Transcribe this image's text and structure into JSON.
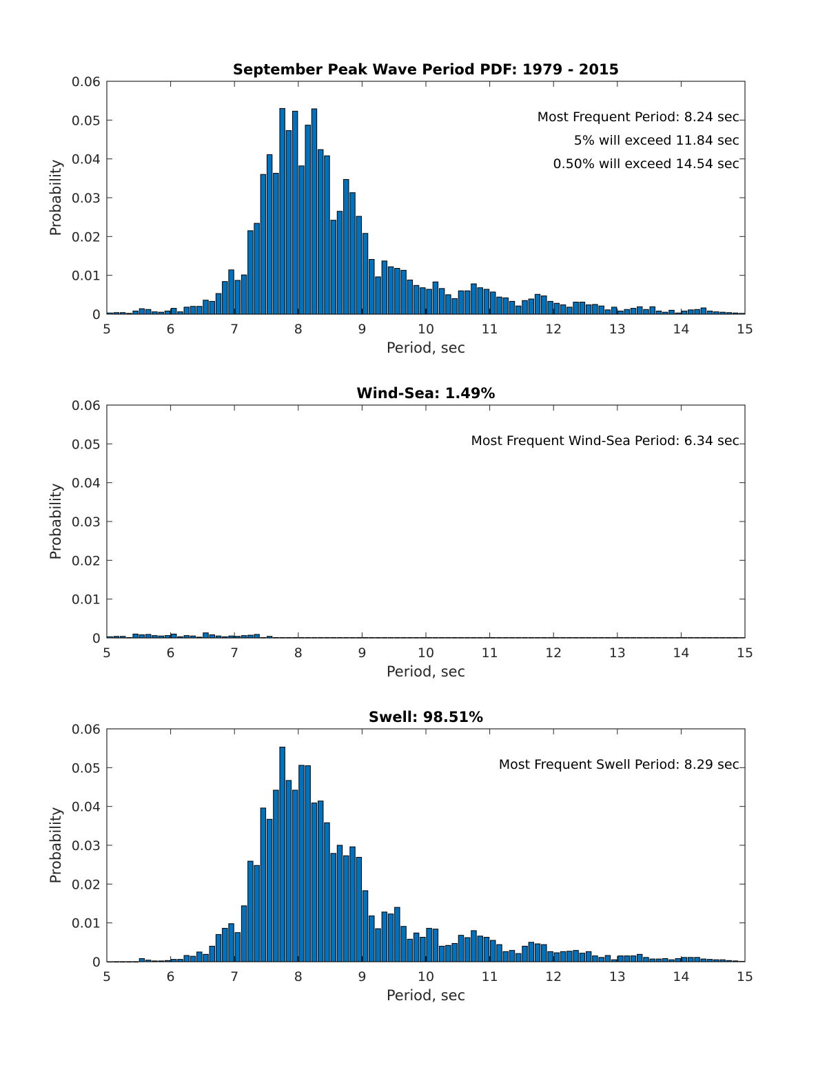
{
  "colors": {
    "bar": "#0072bd",
    "edge": "#000000",
    "axis": "#262626"
  },
  "chart_data": [
    {
      "type": "bar",
      "title": "September Peak Wave Period PDF: 1979 - 2015",
      "xlabel": "Period, sec",
      "ylabel": "Probability",
      "xlim": [
        5,
        15
      ],
      "ylim": [
        0,
        0.06
      ],
      "xticks": [
        "5",
        "6",
        "7",
        "8",
        "9",
        "10",
        "11",
        "12",
        "13",
        "14",
        "15"
      ],
      "yticks": [
        "0",
        "0.01",
        "0.02",
        "0.03",
        "0.04",
        "0.05",
        "0.06"
      ],
      "x_start": 5.0,
      "bin_width": 0.1,
      "annotations": [
        "Most Frequent Period: 8.24 sec",
        "5% will exceed 11.84 sec",
        "0.50% will exceed 14.54 sec"
      ],
      "values": [
        0.0003,
        0.0004,
        0.0004,
        0.0002,
        0.0008,
        0.0014,
        0.0012,
        0.0006,
        0.0005,
        0.0008,
        0.0015,
        0.0006,
        0.0018,
        0.002,
        0.002,
        0.0036,
        0.0033,
        0.0053,
        0.0084,
        0.0114,
        0.0087,
        0.0101,
        0.0215,
        0.0234,
        0.036,
        0.0411,
        0.0363,
        0.053,
        0.0473,
        0.0523,
        0.0382,
        0.0487,
        0.0529,
        0.0424,
        0.0408,
        0.0242,
        0.0265,
        0.0347,
        0.0313,
        0.0252,
        0.0208,
        0.0141,
        0.0096,
        0.0137,
        0.0122,
        0.0118,
        0.0113,
        0.0088,
        0.0074,
        0.0068,
        0.0064,
        0.0083,
        0.0066,
        0.005,
        0.004,
        0.006,
        0.006,
        0.0078,
        0.0068,
        0.0064,
        0.0057,
        0.0044,
        0.0042,
        0.0033,
        0.0021,
        0.0035,
        0.0039,
        0.0051,
        0.0047,
        0.0033,
        0.0028,
        0.0024,
        0.0018,
        0.0031,
        0.0031,
        0.0024,
        0.0025,
        0.0021,
        0.0011,
        0.0018,
        0.0008,
        0.0012,
        0.0015,
        0.0019,
        0.0012,
        0.0019,
        0.0008,
        0.0005,
        0.001,
        0.0003,
        0.0008,
        0.0011,
        0.0012,
        0.0016,
        0.0008,
        0.0006,
        0.0005,
        0.0004,
        0.0003,
        0.0002
      ]
    },
    {
      "type": "bar",
      "title": "Wind-Sea: 1.49%",
      "xlabel": "Period, sec",
      "ylabel": "Probability",
      "xlim": [
        5,
        15
      ],
      "ylim": [
        0,
        0.06
      ],
      "xticks": [
        "5",
        "6",
        "7",
        "8",
        "9",
        "10",
        "11",
        "12",
        "13",
        "14",
        "15"
      ],
      "yticks": [
        "0",
        "0.01",
        "0.02",
        "0.03",
        "0.04",
        "0.05",
        "0.06"
      ],
      "x_start": 5.0,
      "bin_width": 0.1,
      "annotations": [
        "Most Frequent Wind-Sea Period: 6.34 sec"
      ],
      "values": [
        0.0003,
        0.0004,
        0.0004,
        0.0001,
        0.001,
        0.0008,
        0.0009,
        0.0006,
        0.0005,
        0.0006,
        0.001,
        0.0003,
        0.0006,
        0.0005,
        0.0002,
        0.0013,
        0.0008,
        0.0005,
        0.0003,
        0.0005,
        0.0004,
        0.0006,
        0.0007,
        0.0009,
        0.0001,
        0.0004,
        0.0001,
        0.0001,
        0.0001,
        0.0001,
        0.0001,
        0.0001,
        0.0001,
        0.0001,
        0.0001,
        0.0001,
        0.0001,
        0.0001,
        0.0001,
        0.0001,
        0.0001,
        0.0001,
        0.0001,
        0.0001,
        0.0001,
        0.0001,
        0.0001,
        0.0001,
        0.0001,
        0.0001,
        0.0001,
        0.0001,
        0.0001,
        0.0001,
        0.0001,
        0.0001,
        0.0001,
        0.0001,
        0.0001,
        0.0001,
        0.0001,
        0.0001,
        0.0001,
        0.0001,
        0.0001,
        0.0001,
        0.0001,
        0.0001,
        0.0001,
        0.0001,
        0.0001,
        0.0001,
        0.0001,
        0.0001,
        0.0001,
        0.0001,
        0.0001,
        0.0001,
        0.0001,
        0.0001,
        0.0001,
        0.0001,
        0.0001,
        0.0001,
        0.0001,
        0.0001,
        0.0001,
        0.0001,
        0.0001,
        0.0001,
        0.0001,
        0.0001,
        0.0001,
        0.0001,
        0.0001,
        0.0001,
        0.0001,
        0.0001,
        0.0001,
        0.0001
      ]
    },
    {
      "type": "bar",
      "title": "Swell: 98.51%",
      "xlabel": "Period, sec",
      "ylabel": "Probability",
      "xlim": [
        5,
        15
      ],
      "ylim": [
        0,
        0.06
      ],
      "xticks": [
        "5",
        "6",
        "7",
        "8",
        "9",
        "10",
        "11",
        "12",
        "13",
        "14",
        "15"
      ],
      "yticks": [
        "0",
        "0.01",
        "0.02",
        "0.03",
        "0.04",
        "0.05",
        "0.06"
      ],
      "x_start": 5.0,
      "bin_width": 0.1,
      "annotations": [
        "Most Frequent Swell Period: 8.29 sec"
      ],
      "values": [
        0,
        0,
        0,
        0,
        0,
        0.0008,
        0.0004,
        0.0002,
        0.0002,
        0.0003,
        0.0006,
        0.0006,
        0.0016,
        0.0014,
        0.0025,
        0.0019,
        0.004,
        0.007,
        0.0086,
        0.0098,
        0.0075,
        0.0144,
        0.0259,
        0.0248,
        0.0396,
        0.0367,
        0.0442,
        0.0553,
        0.0467,
        0.0442,
        0.0506,
        0.0505,
        0.0409,
        0.0414,
        0.0358,
        0.0279,
        0.03,
        0.0273,
        0.0296,
        0.0269,
        0.0183,
        0.0118,
        0.0085,
        0.0128,
        0.0123,
        0.014,
        0.0091,
        0.0058,
        0.0074,
        0.0063,
        0.0086,
        0.0084,
        0.004,
        0.0042,
        0.0047,
        0.0068,
        0.0062,
        0.008,
        0.0066,
        0.0063,
        0.0055,
        0.0044,
        0.0026,
        0.0029,
        0.0021,
        0.004,
        0.005,
        0.0046,
        0.0044,
        0.0026,
        0.0023,
        0.0026,
        0.0027,
        0.0029,
        0.0022,
        0.0026,
        0.0015,
        0.0011,
        0.0016,
        0.0005,
        0.0015,
        0.0015,
        0.0015,
        0.0019,
        0.0011,
        0.0007,
        0.0007,
        0.0008,
        0.0005,
        0.0008,
        0.0011,
        0.0011,
        0.0011,
        0.0007,
        0.0006,
        0.0005,
        0.0005,
        0.0003,
        0.0002,
        0.0001
      ]
    }
  ]
}
